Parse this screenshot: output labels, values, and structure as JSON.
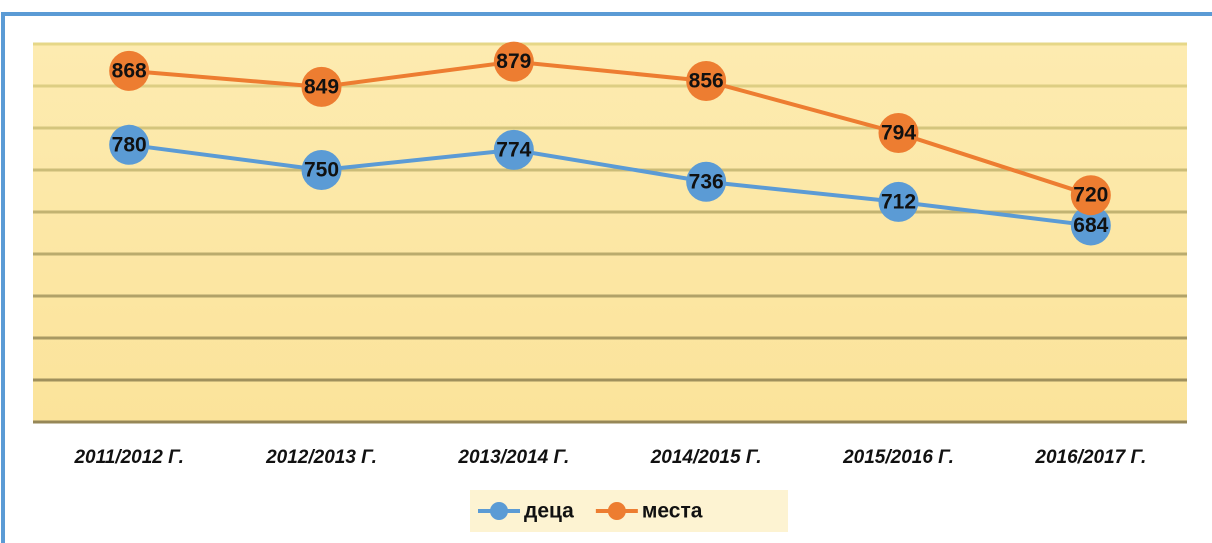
{
  "chart_data": {
    "type": "line",
    "categories": [
      "2011/2012 Г.",
      "2012/2013 Г.",
      "2013/2014 Г.",
      "2014/2015 Г.",
      "2015/2016 Г.",
      "2016/2017 Г."
    ],
    "series": [
      {
        "name": "деца",
        "color": "#5b9bd5",
        "values": [
          780,
          750,
          774,
          736,
          712,
          684
        ]
      },
      {
        "name": "места",
        "color": "#ed7d31",
        "values": [
          868,
          849,
          879,
          856,
          794,
          720
        ]
      }
    ],
    "ylim": [
      450,
      900
    ],
    "yticks": [
      450,
      500,
      550,
      600,
      650,
      700,
      750,
      800,
      850,
      900
    ],
    "grid": true,
    "legend": "bottom"
  }
}
